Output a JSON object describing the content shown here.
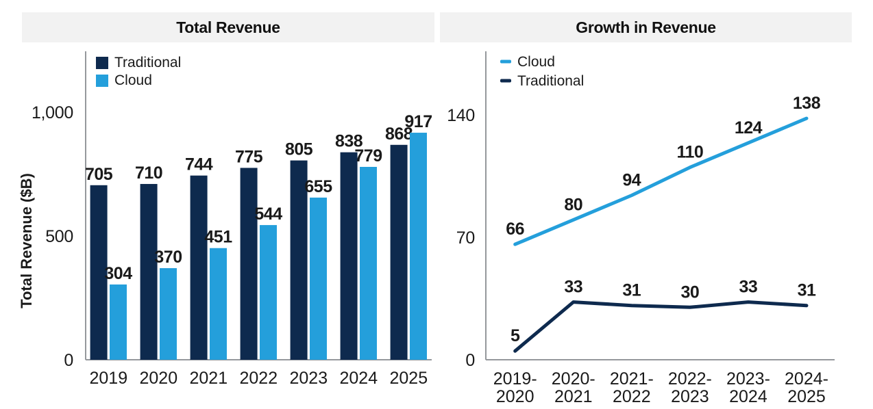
{
  "chart_data": [
    {
      "type": "bar",
      "title": "Total Revenue",
      "ylabel": "Total Revenue ($B)",
      "xlabel": "",
      "ylim": [
        0,
        1000
      ],
      "grid": false,
      "legend_position": "top-left",
      "yticks": [
        {
          "value": 0,
          "label": "0"
        },
        {
          "value": 500,
          "label": "500"
        },
        {
          "value": 1000,
          "label": "1,000"
        }
      ],
      "categories": [
        "2019",
        "2020",
        "2021",
        "2022",
        "2023",
        "2024",
        "2025"
      ],
      "series": [
        {
          "name": "Traditional",
          "color": "#0e2a4e",
          "values": [
            705,
            710,
            744,
            775,
            805,
            838,
            868
          ]
        },
        {
          "name": "Cloud",
          "color": "#249fdb",
          "values": [
            304,
            370,
            451,
            544,
            655,
            779,
            917
          ]
        }
      ]
    },
    {
      "type": "line",
      "title": "Growth in Revenue",
      "ylabel": "",
      "xlabel": "",
      "ylim": [
        0,
        140
      ],
      "grid": false,
      "legend_position": "top-left",
      "yticks": [
        {
          "value": 0,
          "label": "0"
        },
        {
          "value": 70,
          "label": "70"
        },
        {
          "value": 140,
          "label": "140"
        }
      ],
      "categories": [
        "2019-\n2020",
        "2020-\n2021",
        "2021-\n2022",
        "2022-\n2023",
        "2023-\n2024",
        "2024-\n2025"
      ],
      "series": [
        {
          "name": "Cloud",
          "color": "#249fdb",
          "values": [
            66,
            80,
            94,
            110,
            124,
            138
          ]
        },
        {
          "name": "Traditional",
          "color": "#0e2a4e",
          "values": [
            5,
            33,
            31,
            30,
            33,
            31
          ]
        }
      ]
    }
  ],
  "colors": {
    "title_band": "#f2f2f2",
    "axis": "#95989c",
    "text": "#1a1a1a",
    "traditional": "#0e2a4e",
    "cloud": "#249fdb"
  }
}
